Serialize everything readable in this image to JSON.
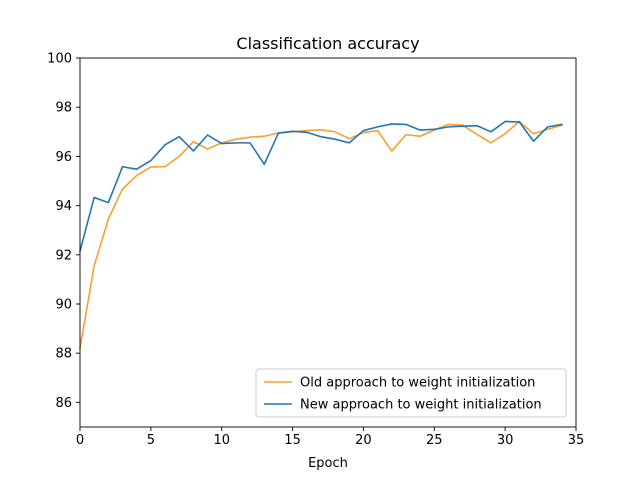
{
  "chart_data": {
    "type": "line",
    "title": "Classification accuracy",
    "xlabel": "Epoch",
    "ylabel": "",
    "xlim": [
      0,
      35
    ],
    "ylim": [
      85,
      100
    ],
    "xticks": [
      0,
      5,
      10,
      15,
      20,
      25,
      30,
      35
    ],
    "yticks": [
      86,
      88,
      90,
      92,
      94,
      96,
      98,
      100
    ],
    "grid": false,
    "legend_position": "lower-right",
    "x": [
      0,
      1,
      2,
      3,
      4,
      5,
      6,
      7,
      8,
      9,
      10,
      11,
      12,
      13,
      14,
      15,
      16,
      17,
      18,
      19,
      20,
      21,
      22,
      23,
      24,
      25,
      26,
      27,
      28,
      29,
      30,
      31,
      32,
      33,
      34
    ],
    "series": [
      {
        "name": "Old approach to weight initialization",
        "color": "#f5a030",
        "values": [
          88.2,
          91.55,
          93.45,
          94.67,
          95.22,
          95.57,
          95.58,
          96.0,
          96.6,
          96.3,
          96.55,
          96.7,
          96.78,
          96.82,
          96.95,
          97.0,
          97.05,
          97.08,
          97.0,
          96.72,
          96.97,
          97.05,
          96.22,
          96.88,
          96.82,
          97.07,
          97.3,
          97.27,
          96.9,
          96.55,
          96.92,
          97.42,
          96.92,
          97.1,
          97.27
        ]
      },
      {
        "name": "New approach to weight initialization",
        "color": "#1f77b4",
        "values": [
          92.15,
          94.33,
          94.12,
          95.58,
          95.48,
          95.83,
          96.47,
          96.8,
          96.22,
          96.87,
          96.52,
          96.55,
          96.55,
          95.68,
          96.95,
          97.02,
          96.98,
          96.8,
          96.7,
          96.55,
          97.05,
          97.2,
          97.32,
          97.3,
          97.07,
          97.1,
          97.2,
          97.23,
          97.25,
          97.0,
          97.42,
          97.4,
          96.62,
          97.2,
          97.3
        ]
      }
    ]
  }
}
